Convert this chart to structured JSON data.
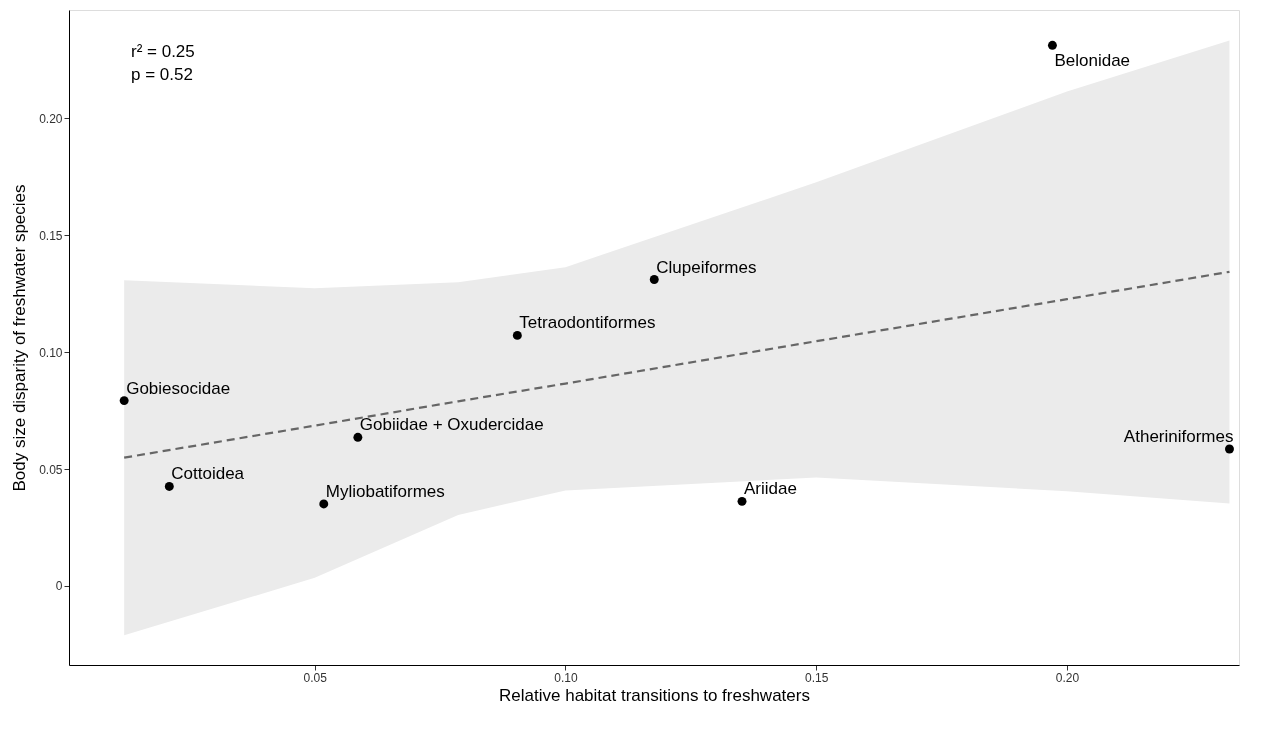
{
  "chart_data": {
    "type": "scatter",
    "xlabel": "Relative habitat transitions to freshwaters",
    "ylabel": "Body size disparity of freshwater species",
    "xlim": [
      0.001,
      0.2343
    ],
    "ylim": [
      -0.0338,
      0.2464
    ],
    "xticks": [
      {
        "value": 0.05,
        "label": "0.05"
      },
      {
        "value": 0.1,
        "label": "0.10"
      },
      {
        "value": 0.15,
        "label": "0.15"
      },
      {
        "value": 0.2,
        "label": "0.20"
      }
    ],
    "yticks": [
      {
        "value": 0,
        "label": "0"
      },
      {
        "value": 0.05,
        "label": "0.05"
      },
      {
        "value": 0.1,
        "label": "0.10"
      },
      {
        "value": 0.15,
        "label": "0.15"
      },
      {
        "value": 0.2,
        "label": "0.20"
      }
    ],
    "grid": false,
    "series": [
      {
        "color": "#000000",
        "marker": "circle",
        "x": [
          0.012,
          0.021,
          0.0518,
          0.0586,
          0.0904,
          0.1177,
          0.1352,
          0.1971,
          0.2324
        ],
        "values": [
          0.0793,
          0.0426,
          0.0351,
          0.0636,
          0.1072,
          0.1311,
          0.0362,
          0.2313,
          0.0586
        ]
      },
      {
        "type": "line",
        "color": "#666666",
        "line_style": "dashed",
        "x": [
          0.012,
          0.05,
          0.0786,
          0.1,
          0.15,
          0.2,
          0.2324
        ],
        "values": [
          0.0549,
          0.0686,
          0.079,
          0.0866,
          0.1047,
          0.1227,
          0.1344
        ],
        "lower": [
          -0.0211,
          0.0035,
          0.0304,
          0.0409,
          0.0464,
          0.0405,
          0.0353
        ],
        "upper": [
          0.1308,
          0.1274,
          0.1299,
          0.1364,
          0.1727,
          0.2115,
          0.2333
        ]
      }
    ],
    "annotations": [
      "r² = 0.25",
      "p = 0.52",
      {
        "text": "Gobiesocidae",
        "x": 0.012,
        "y": 0.0793
      },
      {
        "text": "Cottoidea",
        "x": 0.021,
        "y": 0.0426
      },
      {
        "text": "Myliobatiformes",
        "x": 0.0518,
        "y": 0.0351
      },
      {
        "text": "Gobiidae + Oxudercidae",
        "x": 0.0586,
        "y": 0.0636
      },
      {
        "text": "Tetraodontiformes",
        "x": 0.0904,
        "y": 0.1072
      },
      {
        "text": "Clupeiformes",
        "x": 0.1177,
        "y": 0.1311
      },
      {
        "text": "Ariidae",
        "x": 0.1352,
        "y": 0.0362
      },
      {
        "text": "Belonidae",
        "x": 0.1971,
        "y": 0.2313
      },
      {
        "text": "Atheriniformes",
        "x": 0.2324,
        "y": 0.0586
      }
    ]
  }
}
